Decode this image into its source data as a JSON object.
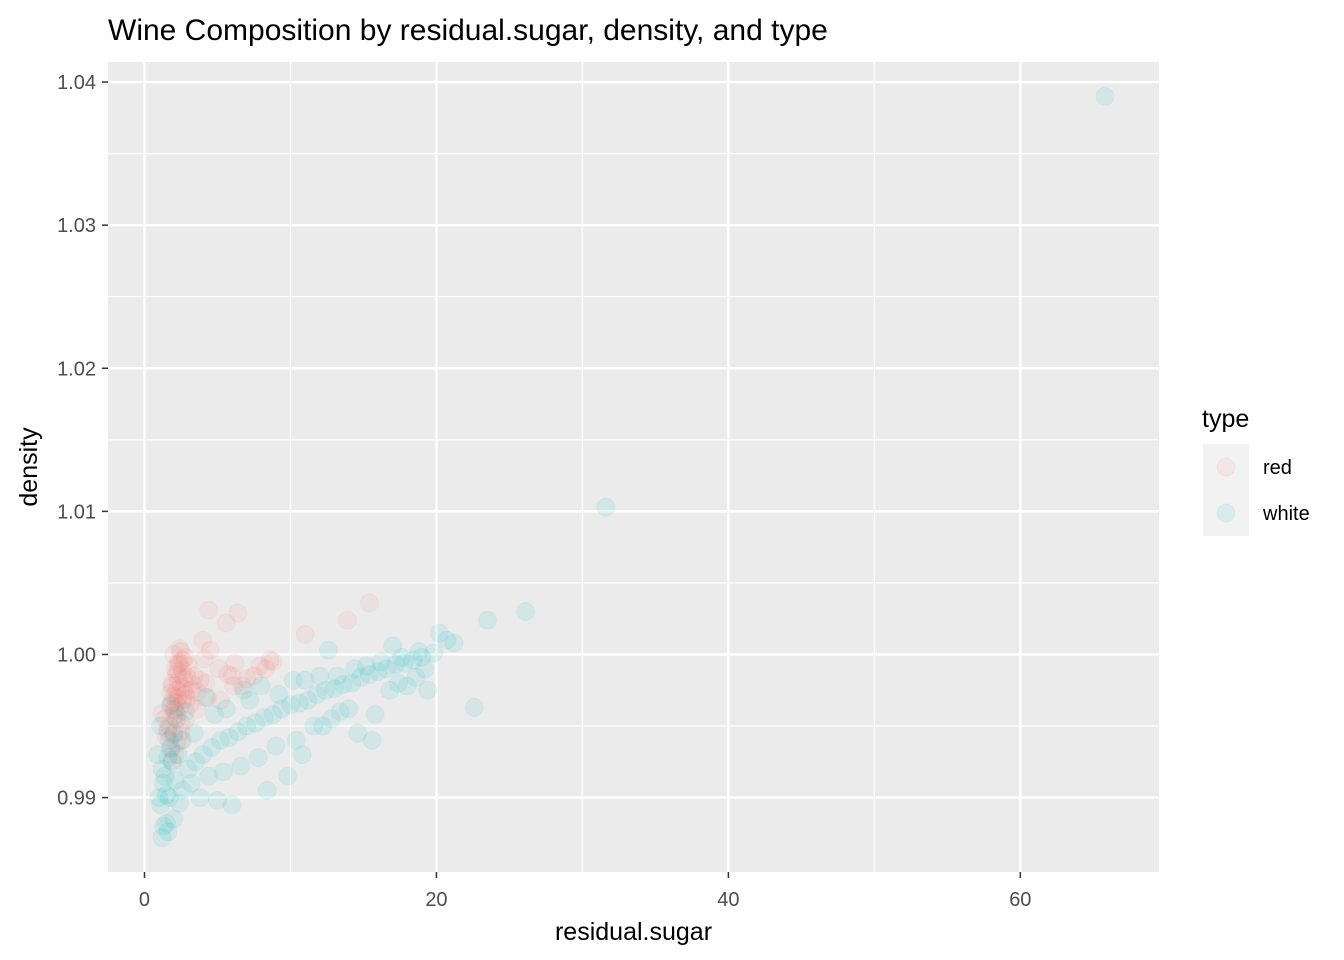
{
  "chart_data": {
    "type": "scatter",
    "title": "Wine Composition by residual.sugar, density, and type",
    "xlabel": "residual.sugar",
    "ylabel": "density",
    "xlim": [
      -2.5,
      69.5
    ],
    "ylim": [
      0.9848,
      1.0414
    ],
    "x_ticks": [
      0,
      20,
      40,
      60
    ],
    "x_tick_labels": [
      "0",
      "20",
      "40",
      "60"
    ],
    "y_ticks": [
      0.99,
      1.0,
      1.01,
      1.02,
      1.03,
      1.04
    ],
    "y_tick_labels": [
      "0.99",
      "1.00",
      "1.01",
      "1.02",
      "1.03",
      "1.04"
    ],
    "grid": true,
    "legend": {
      "title": "type",
      "position": "right"
    },
    "point_alpha": 0.1,
    "series": [
      {
        "name": "red",
        "color": "#F8766D",
        "x": [
          1.9,
          2.6,
          2.3,
          1.9,
          1.8,
          1.6,
          1.2,
          2.0,
          6.1,
          1.8,
          2.2,
          2.1,
          2.4,
          2.8,
          2.5,
          2.0,
          3.0,
          2.9,
          2.7,
          2.2,
          1.7,
          1.5,
          2.3,
          2.6,
          3.4,
          3.8,
          4.0,
          4.4,
          5.1,
          5.6,
          6.0,
          6.4,
          7.0,
          7.9,
          8.3,
          8.6,
          4.3,
          3.2,
          3.6,
          2.4,
          1.4,
          2.0,
          2.1,
          2.5,
          2.6,
          2.2,
          2.8,
          1.8,
          1.9,
          2.3,
          4.1,
          6.2,
          5.7,
          4.5,
          15.4,
          13.9,
          11.0,
          8.8,
          7.5,
          6.7,
          5.2,
          3.1,
          2.0,
          2.5,
          2.7,
          2.2,
          1.9,
          2.4,
          2.6,
          2.3,
          2.1,
          2.9,
          3.3,
          2.0,
          1.6,
          2.2,
          2.5,
          2.8,
          3.6,
          4.2
        ],
        "y": [
          0.9978,
          0.9968,
          0.997,
          0.998,
          0.9964,
          0.9946,
          0.9959,
          0.9962,
          0.9978,
          0.9973,
          0.9986,
          0.999,
          0.9994,
          0.9998,
          1.0002,
          1.0,
          0.9992,
          0.9984,
          0.9976,
          0.9958,
          0.995,
          0.9942,
          0.9988,
          0.9996,
          0.9985,
          0.9982,
          1.001,
          1.0031,
          0.999,
          1.0022,
          0.9985,
          1.0029,
          0.9983,
          0.9992,
          0.999,
          0.9996,
          0.997,
          0.9975,
          0.9962,
          1.0004,
          0.9955,
          0.9944,
          0.993,
          0.9952,
          0.994,
          0.9966,
          0.9972,
          0.9934,
          0.9926,
          0.9981,
          0.9997,
          0.9994,
          0.9986,
          1.0003,
          1.0036,
          1.0024,
          1.0014,
          0.9995,
          0.9985,
          0.9978,
          0.9968,
          0.9965,
          0.9971,
          0.9977,
          0.9983,
          0.9975,
          0.9967,
          0.9963,
          0.9989,
          0.9993,
          0.9961,
          0.9969,
          0.9979,
          0.9957,
          0.9948,
          0.9938,
          0.9946,
          0.9954,
          0.9974,
          0.998
        ]
      },
      {
        "name": "white",
        "color": "#00BFC4",
        "x": [
          1.2,
          1.3,
          1.5,
          1.6,
          1.8,
          2.0,
          1.1,
          1.4,
          1.7,
          1.9,
          2.1,
          2.3,
          2.6,
          3.0,
          3.5,
          4.0,
          4.6,
          5.2,
          5.8,
          6.4,
          7.0,
          7.6,
          8.2,
          8.8,
          9.4,
          10.0,
          10.6,
          11.2,
          11.8,
          12.4,
          13.0,
          13.6,
          14.2,
          14.8,
          15.4,
          16.0,
          16.6,
          17.2,
          17.8,
          18.4,
          19.0,
          19.8,
          20.7,
          22.6,
          23.5,
          26.1,
          31.6,
          65.8,
          1.5,
          2.4,
          3.2,
          4.4,
          5.4,
          6.6,
          7.8,
          9.0,
          10.4,
          11.6,
          12.8,
          14.0,
          15.6,
          16.8,
          18.0,
          19.4,
          1.2,
          1.6,
          2.0,
          3.8,
          5.0,
          6.0,
          8.4,
          9.8,
          10.8,
          12.2,
          13.4,
          14.6,
          15.8,
          17.4,
          18.6,
          19.2,
          1.0,
          1.3,
          1.7,
          2.2,
          2.8,
          4.2,
          6.8,
          8.0,
          11.0,
          12.0,
          14.4,
          16.2,
          17.6,
          18.8,
          0.9,
          1.1,
          1.8,
          2.5,
          3.4,
          4.8,
          5.6,
          7.2,
          9.2,
          10.2,
          13.2,
          15.2,
          17.0,
          20.2,
          21.2,
          12.6
        ],
        "y": [
          0.992,
          0.991,
          0.9902,
          0.9928,
          0.9935,
          0.9945,
          0.9895,
          0.9915,
          0.994,
          0.9925,
          0.9912,
          0.993,
          0.9905,
          0.992,
          0.9925,
          0.993,
          0.9935,
          0.994,
          0.9942,
          0.9946,
          0.995,
          0.9952,
          0.9956,
          0.9958,
          0.9962,
          0.9965,
          0.9966,
          0.9968,
          0.9972,
          0.9975,
          0.9976,
          0.9979,
          0.998,
          0.9984,
          0.9986,
          0.9988,
          0.999,
          0.9993,
          0.9994,
          0.9996,
          0.9998,
          1.0001,
          1.001,
          0.9963,
          1.0024,
          1.003,
          1.0103,
          1.039,
          0.9882,
          0.9896,
          0.991,
          0.9915,
          0.9918,
          0.9922,
          0.9928,
          0.9936,
          0.994,
          0.995,
          0.9955,
          0.9962,
          0.994,
          0.9975,
          0.9978,
          0.9975,
          0.9872,
          0.9876,
          0.9885,
          0.99,
          0.9898,
          0.9895,
          0.9905,
          0.9915,
          0.993,
          0.995,
          0.996,
          0.9945,
          0.9958,
          0.998,
          0.9984,
          0.999,
          0.99,
          0.988,
          0.99,
          0.9955,
          0.996,
          0.997,
          0.9975,
          0.9978,
          0.9982,
          0.9985,
          0.999,
          0.9995,
          0.9998,
          1.0002,
          0.993,
          0.995,
          0.9965,
          0.994,
          0.9945,
          0.9958,
          0.9962,
          0.9968,
          0.9972,
          0.9982,
          0.9985,
          0.9992,
          1.0006,
          1.0015,
          1.0008,
          1.0003
        ]
      }
    ]
  }
}
